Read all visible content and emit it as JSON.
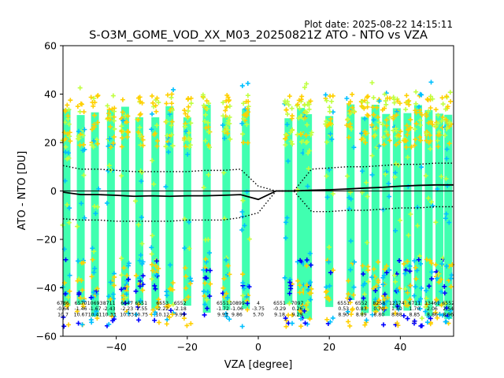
{
  "header": {
    "plot_date": "Plot date: 2025-08-22 14:15:11",
    "title": "S-O3M_GOME_VOD_XX_M03_20250821Z ATO - NTO vs VZA"
  },
  "chart_data": {
    "type": "scatter",
    "title": "S-O3M_GOME_VOD_XX_M03_20250821Z ATO - NTO vs VZA",
    "xlabel": "VZA [degree]",
    "ylabel": "ATO - NTO [DU]",
    "xlim": [
      -55,
      55
    ],
    "ylim": [
      -60,
      60
    ],
    "xticks": [
      -40,
      -20,
      0,
      20,
      40
    ],
    "yticks": [
      -60,
      -40,
      -20,
      0,
      20,
      40,
      60
    ],
    "zero_line": 0,
    "column_x": [
      -54,
      -50,
      -46,
      -41.5,
      -37.5,
      -33.5,
      -29,
      -25,
      -20,
      -14.5,
      -9,
      -3.5,
      8.5,
      12,
      14,
      20,
      26,
      30,
      33,
      36,
      39,
      42,
      45,
      48,
      51,
      53.5
    ],
    "scatter_colors": {
      "dense": "#40ffb0",
      "mid": "#c0ff40",
      "warm": "#ffd000",
      "cool": "#00c0ff",
      "cold": "#0000ff"
    },
    "mean_line": {
      "color": "#000000",
      "points": [
        [
          -55,
          -0.5
        ],
        [
          -50,
          -1.5
        ],
        [
          -45,
          -1.5
        ],
        [
          -40,
          -1.8
        ],
        [
          -35,
          -2.2
        ],
        [
          -30,
          -2
        ],
        [
          -25,
          -2.2
        ],
        [
          -20,
          -2
        ],
        [
          -15,
          -2
        ],
        [
          -10,
          -1.8
        ],
        [
          -5,
          -1.5
        ],
        [
          0,
          -3.5
        ],
        [
          5,
          0
        ],
        [
          10,
          0
        ],
        [
          15,
          0.3
        ],
        [
          20,
          0.5
        ],
        [
          25,
          0.8
        ],
        [
          30,
          1.2
        ],
        [
          35,
          1.5
        ],
        [
          40,
          2
        ],
        [
          45,
          2.3
        ],
        [
          50,
          2.5
        ],
        [
          55,
          2.5
        ]
      ]
    },
    "upper_band": {
      "color": "#000000",
      "style": "dotted",
      "points": [
        [
          -55,
          10.5
        ],
        [
          -50,
          9
        ],
        [
          -45,
          9
        ],
        [
          -40,
          8.5
        ],
        [
          -35,
          8
        ],
        [
          -30,
          8
        ],
        [
          -25,
          8
        ],
        [
          -20,
          8
        ],
        [
          -15,
          8.5
        ],
        [
          -10,
          8.5
        ],
        [
          -5,
          9
        ],
        [
          0,
          2
        ],
        [
          5,
          0
        ],
        [
          10,
          0
        ],
        [
          15,
          9
        ],
        [
          20,
          9.5
        ],
        [
          25,
          10
        ],
        [
          30,
          10
        ],
        [
          35,
          10.5
        ],
        [
          40,
          11
        ],
        [
          45,
          11
        ],
        [
          50,
          11.5
        ],
        [
          55,
          11.5
        ]
      ]
    },
    "lower_band": {
      "color": "#000000",
      "style": "dotted",
      "points": [
        [
          -55,
          -11.5
        ],
        [
          -50,
          -12
        ],
        [
          -45,
          -12
        ],
        [
          -40,
          -12.5
        ],
        [
          -35,
          -12.5
        ],
        [
          -30,
          -12.5
        ],
        [
          -25,
          -12.5
        ],
        [
          -20,
          -12
        ],
        [
          -15,
          -12
        ],
        [
          -10,
          -12
        ],
        [
          -5,
          -11
        ],
        [
          0,
          -9
        ],
        [
          5,
          0
        ],
        [
          10,
          0
        ],
        [
          15,
          -8.5
        ],
        [
          20,
          -8.5
        ],
        [
          25,
          -8
        ],
        [
          30,
          -8
        ],
        [
          35,
          -7.5
        ],
        [
          40,
          -7
        ],
        [
          45,
          -7
        ],
        [
          50,
          -6.5
        ],
        [
          55,
          -6.5
        ]
      ]
    },
    "bin_annotations": {
      "note": "per-bin statistics printed near bottom of plot (count / mean / std)",
      "rows": [
        {
          "x": -55,
          "lines": [
            "6786",
            "-0.64",
            "10.7"
          ]
        },
        {
          "x": -50,
          "lines": [
            "6570",
            "-1.46",
            "10.67"
          ]
        },
        {
          "x": -46,
          "lines": [
            "10693",
            "-1.67",
            "10.41"
          ]
        },
        {
          "x": -42,
          "lines": [
            "8711",
            "-2.43",
            "10.33"
          ]
        },
        {
          "x": -37,
          "lines": [
            "6547",
            "-2.23",
            "10.33"
          ]
        },
        {
          "x": -33,
          "lines": [
            "6551",
            "-2.55",
            "10.75"
          ]
        },
        {
          "x": -27,
          "lines": [
            "6553",
            "-2.22",
            "10.12"
          ]
        },
        {
          "x": -22,
          "lines": [
            "6552",
            "-2.18",
            "9.99"
          ]
        },
        {
          "x": -10,
          "lines": [
            "6551",
            "-1.72",
            "9.93"
          ]
        },
        {
          "x": -6,
          "lines": [
            "10899",
            "-1.06",
            "9.86"
          ]
        },
        {
          "x": 0,
          "lines": [
            "4",
            "-3.75",
            "5.70"
          ]
        },
        {
          "x": 6,
          "lines": [
            "6551",
            "-0.29",
            "9.18"
          ]
        },
        {
          "x": 11,
          "lines": [
            "7097",
            "0.26",
            "9.29"
          ]
        },
        {
          "x": 24,
          "lines": [
            "6551",
            "0.53",
            "8.90"
          ]
        },
        {
          "x": 29,
          "lines": [
            "6552",
            "0.83",
            "8.89"
          ]
        },
        {
          "x": 34,
          "lines": [
            "8258",
            "0.70",
            "8.80"
          ]
        },
        {
          "x": 39,
          "lines": [
            "12174",
            "1.50",
            "8.88"
          ]
        },
        {
          "x": 44,
          "lines": [
            "6711",
            "1.70",
            "8.85"
          ]
        },
        {
          "x": 49,
          "lines": [
            "13461",
            "2.06",
            "8.86"
          ]
        },
        {
          "x": 53.5,
          "lines": [
            "6552",
            "2.54",
            "8.96"
          ]
        }
      ]
    },
    "grid": false,
    "legend": "none"
  }
}
